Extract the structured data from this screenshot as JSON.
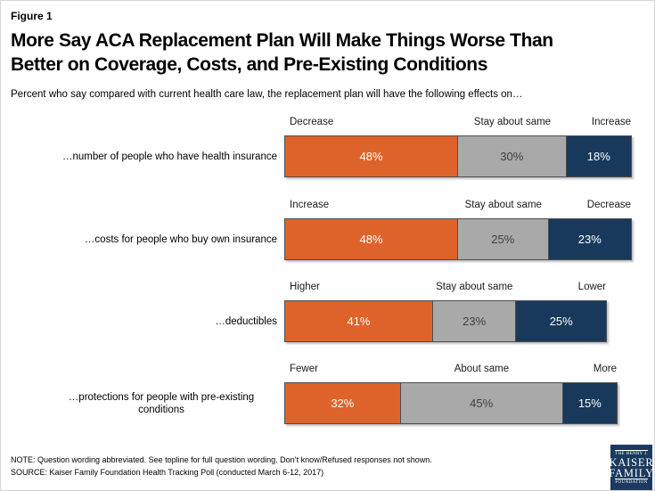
{
  "figure_label": "Figure 1",
  "title": "More Say ACA Replacement Plan Will Make Things Worse Than\nBetter on Coverage, Costs, and Pre-Existing Conditions",
  "subtitle": "Percent who say compared with current health care law, the replacement plan will have the following effects on…",
  "note": "NOTE: Question wording abbreviated. See topline for full question wording. Don’t know/Refused responses not shown.",
  "source": "SOURCE: Kaiser Family Foundation Health Tracking Poll (conducted March 6-12, 2017)",
  "logo": {
    "line1": "THE HENRY J.",
    "line2": "KAISER",
    "line3": "FAMILY",
    "line4": "FOUNDATION"
  },
  "chart_data": {
    "type": "bar",
    "orientation": "horizontal",
    "stacked": true,
    "value_suffix": "%",
    "axis_max": 100,
    "grid": false,
    "palette": {
      "worse": "#DE632B",
      "same": "#A9A9A9",
      "better": "#18395C"
    },
    "rows": [
      {
        "category": "…number of people who have health insurance",
        "segments": [
          {
            "label": "Decrease",
            "value": 48,
            "tone": "worse"
          },
          {
            "label": "Stay about same",
            "value": 30,
            "tone": "same"
          },
          {
            "label": "Increase",
            "value": 18,
            "tone": "better"
          }
        ]
      },
      {
        "category": "…costs for people who buy own insurance",
        "segments": [
          {
            "label": "Increase",
            "value": 48,
            "tone": "worse"
          },
          {
            "label": "Stay about same",
            "value": 25,
            "tone": "same"
          },
          {
            "label": "Decrease",
            "value": 23,
            "tone": "better"
          }
        ]
      },
      {
        "category": "…deductibles",
        "segments": [
          {
            "label": "Higher",
            "value": 41,
            "tone": "worse"
          },
          {
            "label": "Stay about same",
            "value": 23,
            "tone": "same"
          },
          {
            "label": "Lower",
            "value": 25,
            "tone": "better"
          }
        ]
      },
      {
        "category": "…protections for people with pre-existing conditions",
        "segments": [
          {
            "label": "Fewer",
            "value": 32,
            "tone": "worse"
          },
          {
            "label": "About same",
            "value": 45,
            "tone": "same"
          },
          {
            "label": "More",
            "value": 15,
            "tone": "better"
          }
        ]
      }
    ]
  }
}
